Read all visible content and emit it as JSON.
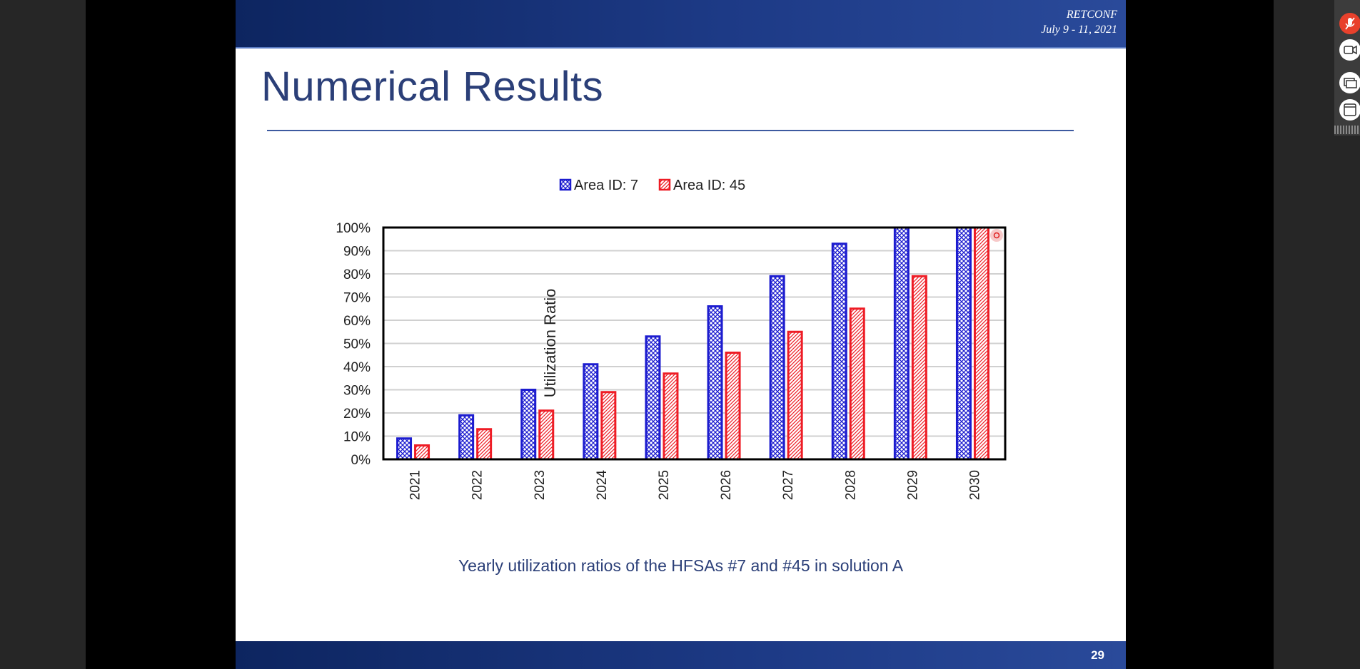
{
  "slide": {
    "conference": "RETCONF",
    "dates": "July 9 - 11, 2021",
    "title": "Numerical Results",
    "caption": "Yearly utilization ratios of the HFSAs #7 and #45 in solution A",
    "page_number": "29"
  },
  "toolbar": {
    "items": [
      {
        "icon": "microphone-muted-icon",
        "color": "#e8412c"
      },
      {
        "icon": "camera-icon",
        "color": "#ffffff"
      },
      {
        "icon": "screen-share-icon",
        "color": "#ffffff"
      },
      {
        "icon": "window-icon",
        "color": "#ffffff"
      }
    ]
  },
  "chart_data": {
    "type": "bar",
    "categories": [
      "2021",
      "2022",
      "2023",
      "2024",
      "2025",
      "2026",
      "2027",
      "2028",
      "2029",
      "2030"
    ],
    "series": [
      {
        "name": "Area ID: 7",
        "color": "#1c1ccf",
        "pattern": "crosshatch",
        "values": [
          9,
          19,
          30,
          41,
          53,
          66,
          79,
          93,
          100,
          100
        ]
      },
      {
        "name": "Area ID: 45",
        "color": "#ee1c25",
        "pattern": "diagonal",
        "values": [
          6,
          13,
          21,
          29,
          37,
          46,
          55,
          65,
          79,
          100
        ]
      }
    ],
    "ylabel": "Utilization Ratio",
    "ylim": [
      0,
      100
    ],
    "yticks": [
      "0%",
      "10%",
      "20%",
      "30%",
      "40%",
      "50%",
      "60%",
      "70%",
      "80%",
      "90%",
      "100%"
    ],
    "grid": true,
    "legend_position": "top-center"
  }
}
